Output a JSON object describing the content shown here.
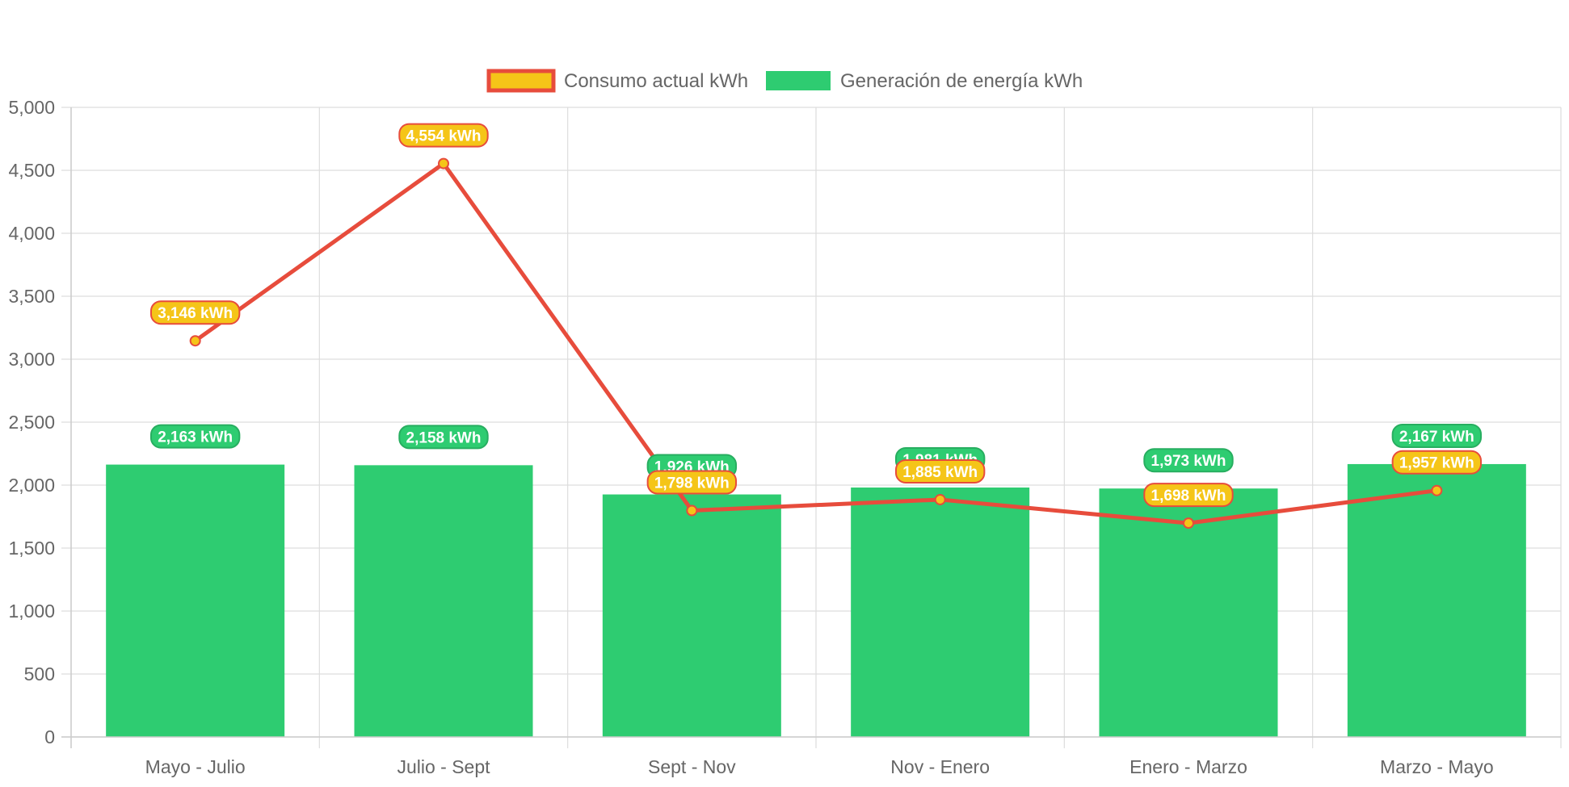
{
  "chart_data": {
    "type": "bar",
    "categories": [
      "Mayo - Julio",
      "Julio - Sept",
      "Sept - Nov",
      "Nov - Enero",
      "Enero - Marzo",
      "Marzo - Mayo"
    ],
    "series": [
      {
        "name": "Consumo actual kWh",
        "type": "line",
        "values": [
          3146,
          4554,
          1798,
          1885,
          1698,
          1957
        ],
        "labels": [
          "3,146 kWh",
          "4,554 kWh",
          "1,798 kWh",
          "1,885 kWh",
          "1,698 kWh",
          "1,957 kWh"
        ],
        "line_color": "#e74c3c",
        "fill_color": "#f5c518"
      },
      {
        "name": "Generación de energía kWh",
        "type": "bar",
        "values": [
          2163,
          2158,
          1926,
          1981,
          1973,
          2167
        ],
        "labels": [
          "2,163 kWh",
          "2,158 kWh",
          "1,926 kWh",
          "1,981 kWh",
          "1,973 kWh",
          "2,167 kWh"
        ],
        "color": "#2ecc71",
        "border_color": "#27ae60"
      }
    ],
    "ylim": [
      0,
      5000
    ],
    "yticks": [
      0,
      500,
      1000,
      1500,
      2000,
      2500,
      3000,
      3500,
      4000,
      4500,
      5000
    ],
    "ytick_labels": [
      "0",
      "500",
      "1,000",
      "1,500",
      "2,000",
      "2,500",
      "3,000",
      "3,500",
      "4,000",
      "4,500",
      "5,000"
    ],
    "legend_position": "top-center",
    "grid": true,
    "title": "",
    "xlabel": "",
    "ylabel": ""
  }
}
